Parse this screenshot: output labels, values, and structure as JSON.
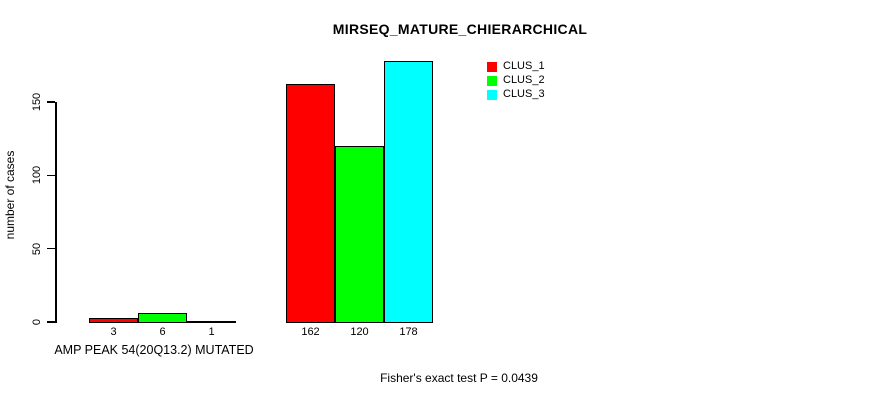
{
  "chart_data": {
    "type": "bar",
    "title": "MIRSEQ_MATURE_CHIERARCHICAL",
    "ylabel": "number of cases",
    "xlabel": "AMP PEAK 54(20Q13.2) MUTATED",
    "footer": "Fisher's exact test P = 0.0439",
    "ylim": [
      0,
      150
    ],
    "yticks": [
      0,
      50,
      100,
      150
    ],
    "grid": false,
    "legend_position": "top-right",
    "categories": [
      "AMP PEAK 54(20Q13.2) MUTATED",
      ""
    ],
    "series": [
      {
        "name": "CLUS_1",
        "color": "#ff0000",
        "values": [
          3,
          162
        ]
      },
      {
        "name": "CLUS_2",
        "color": "#00ff00",
        "values": [
          6,
          120
        ]
      },
      {
        "name": "CLUS_3",
        "color": "#00ffff",
        "values": [
          1,
          178
        ]
      }
    ],
    "bar_value_labels_shown": true,
    "colors": {
      "axis": "#000000",
      "text": "#000000",
      "background": "#ffffff"
    }
  }
}
